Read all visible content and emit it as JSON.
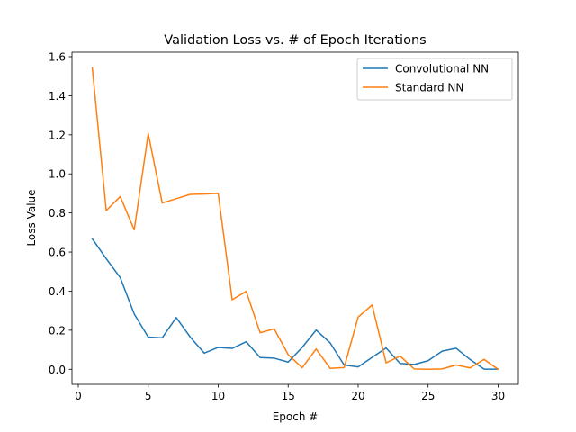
{
  "chart_data": {
    "type": "line",
    "title": "Validation Loss vs. # of Epoch Iterations",
    "xlabel": "Epoch #",
    "ylabel": "Loss Value",
    "xlim": [
      -0.45,
      31.45
    ],
    "ylim": [
      -0.077,
      1.623
    ],
    "xticks": [
      0,
      5,
      10,
      15,
      20,
      25,
      30
    ],
    "yticks": [
      0.0,
      0.2,
      0.4,
      0.6,
      0.8,
      1.0,
      1.2,
      1.4,
      1.6
    ],
    "ytick_labels": [
      "0.0",
      "0.2",
      "0.4",
      "0.6",
      "0.8",
      "1.0",
      "1.2",
      "1.4",
      "1.6"
    ],
    "grid": false,
    "legend_position": "upper right",
    "x": [
      1,
      2,
      3,
      4,
      5,
      6,
      7,
      8,
      9,
      10,
      11,
      12,
      13,
      14,
      15,
      16,
      17,
      18,
      19,
      20,
      21,
      22,
      23,
      24,
      25,
      26,
      27,
      28,
      29,
      30
    ],
    "series": [
      {
        "name": "Convolutional NN",
        "color": "#1f77b4",
        "values": [
          0.668,
          0.566,
          0.469,
          0.283,
          0.165,
          0.161,
          0.265,
          0.165,
          0.083,
          0.112,
          0.107,
          0.141,
          0.06,
          0.057,
          0.037,
          0.112,
          0.201,
          0.135,
          0.022,
          0.012,
          0.061,
          0.109,
          0.03,
          0.025,
          0.044,
          0.093,
          0.108,
          0.05,
          0.001,
          0.001
        ]
      },
      {
        "name": "Standard NN",
        "color": "#ff7f0e",
        "values": [
          1.543,
          0.812,
          0.884,
          0.713,
          1.206,
          0.851,
          0.873,
          0.895,
          0.897,
          0.9,
          0.356,
          0.399,
          0.187,
          0.207,
          0.075,
          0.008,
          0.104,
          0.005,
          0.009,
          0.267,
          0.329,
          0.033,
          0.068,
          0.002,
          0.0,
          0.002,
          0.022,
          0.007,
          0.051,
          0.0
        ]
      }
    ]
  }
}
